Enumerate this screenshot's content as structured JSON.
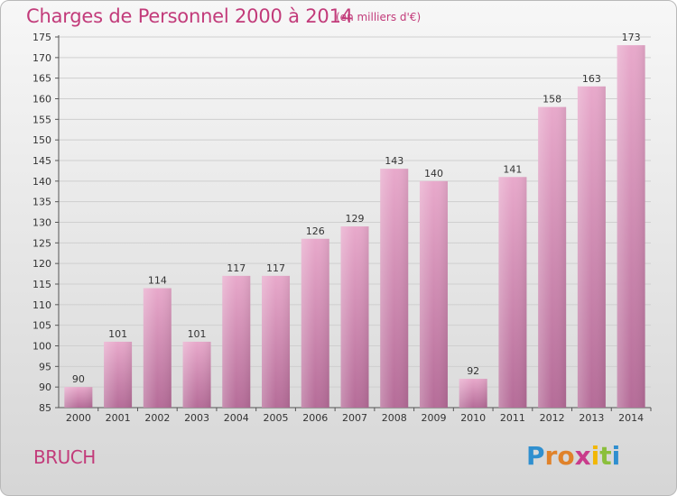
{
  "header": {
    "title": "Charges de Personnel 2000 à 2014",
    "unit": "(en milliers d'€)"
  },
  "footer": {
    "commune": "BRUCH",
    "logo_letters": [
      "P",
      "r",
      "o",
      "x",
      "i",
      "t",
      "i"
    ],
    "logo_colors": [
      "#2f8fcf",
      "#e0822a",
      "#e0822a",
      "#c93c8b",
      "#f2b705",
      "#8bbf3c",
      "#2f8fcf"
    ]
  },
  "chart_data": {
    "type": "bar",
    "title": "Charges de Personnel 2000 à 2014",
    "categories": [
      "2000",
      "2001",
      "2002",
      "2003",
      "2004",
      "2005",
      "2006",
      "2007",
      "2008",
      "2009",
      "2010",
      "2011",
      "2012",
      "2013",
      "2014"
    ],
    "values": [
      90,
      101,
      114,
      101,
      117,
      117,
      126,
      129,
      143,
      140,
      92,
      141,
      158,
      163,
      173
    ],
    "ylim": [
      85,
      175
    ],
    "yticks": [
      85,
      90,
      95,
      100,
      105,
      110,
      115,
      120,
      125,
      130,
      135,
      140,
      145,
      150,
      155,
      160,
      165,
      170,
      175
    ],
    "grid": true,
    "bar_color": "#d994bb"
  }
}
